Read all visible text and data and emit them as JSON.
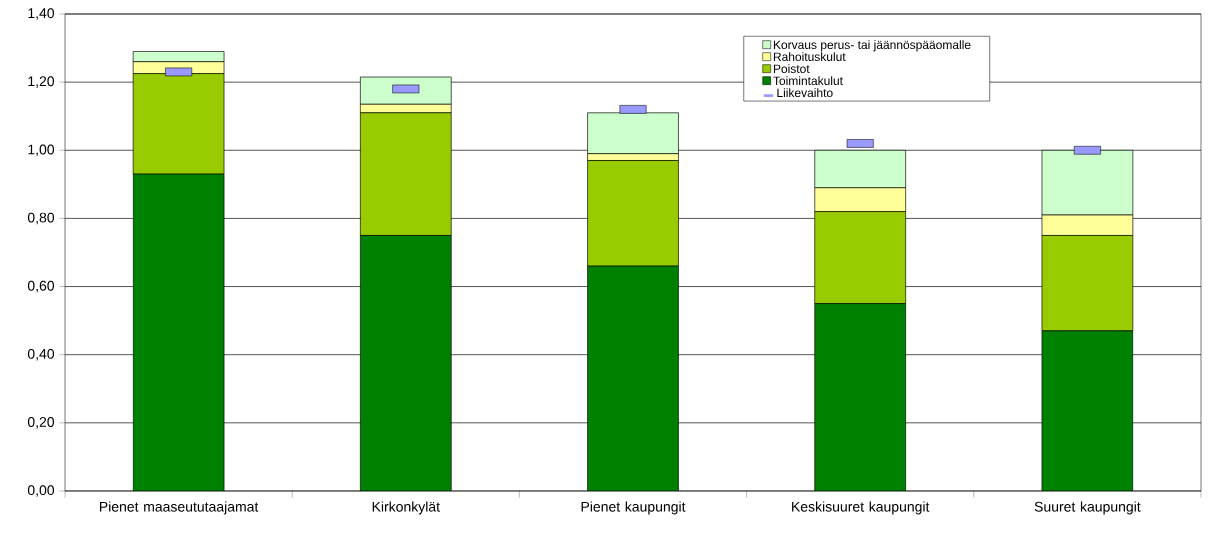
{
  "chart_data": {
    "type": "bar",
    "stacked": true,
    "categories": [
      "Pienet maaseututaajamat",
      "Kirkonkylät",
      "Pienet kaupungit",
      "Keskisuuret kaupungit",
      "Suuret kaupungit"
    ],
    "series": [
      {
        "name": "Toimintakulut",
        "color": "#008000",
        "values": [
          0.93,
          0.75,
          0.66,
          0.55,
          0.47
        ]
      },
      {
        "name": "Poistot",
        "color": "#99cc00",
        "values": [
          0.295,
          0.36,
          0.31,
          0.27,
          0.28
        ]
      },
      {
        "name": "Rahoituskulut",
        "color": "#ffff99",
        "values": [
          0.035,
          0.025,
          0.02,
          0.07,
          0.06
        ]
      },
      {
        "name": "Korvaus perus- tai jäännöspääomalle",
        "color": "#ccffcc",
        "values": [
          0.03,
          0.08,
          0.12,
          0.11,
          0.19
        ]
      },
      {
        "name": "Liikevaihto",
        "type": "scatter",
        "color": "#9999ff",
        "values": [
          1.23,
          1.18,
          1.12,
          1.02,
          1.0
        ]
      }
    ],
    "ylim": [
      0,
      1.4
    ],
    "yticks": [
      {
        "value": 0,
        "label": "0,00"
      },
      {
        "value": 0.2,
        "label": "0,20"
      },
      {
        "value": 0.4,
        "label": "0,40"
      },
      {
        "value": 0.6,
        "label": "0,60"
      },
      {
        "value": 0.8,
        "label": "0,80"
      },
      {
        "value": 1.0,
        "label": "1,00"
      },
      {
        "value": 1.2,
        "label": "1,20"
      },
      {
        "value": 1.4,
        "label": "1,40"
      }
    ],
    "grid": "y",
    "legend": "top right"
  }
}
